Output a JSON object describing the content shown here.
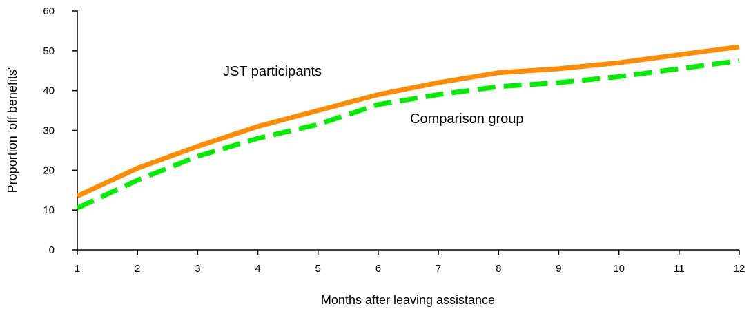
{
  "chart_data": {
    "type": "line",
    "x": [
      1,
      2,
      3,
      4,
      5,
      6,
      7,
      8,
      9,
      10,
      11,
      12
    ],
    "xlabel": "Months after leaving assistance",
    "ylabel": "Proportion 'off benefits'",
    "xlim": [
      1,
      12
    ],
    "ylim": [
      0,
      60
    ],
    "yticks": [
      0,
      10,
      20,
      30,
      40,
      50,
      60
    ],
    "xticks": [
      1,
      2,
      3,
      4,
      5,
      6,
      7,
      8,
      9,
      10,
      11,
      12
    ],
    "grid": false,
    "legend": "inline labels",
    "series": [
      {
        "name": "JST participants",
        "values": [
          13.5,
          20.5,
          26,
          31,
          35,
          39,
          42,
          44.5,
          45.5,
          47,
          49,
          51
        ],
        "color": "#ff8c00",
        "style": "solid"
      },
      {
        "name": "Comparison group",
        "values": [
          10.5,
          17.5,
          23.5,
          28,
          31.5,
          36.5,
          39,
          41,
          42,
          43.5,
          45.5,
          47.5
        ],
        "color": "#00ee00",
        "style": "dashed"
      }
    ]
  }
}
